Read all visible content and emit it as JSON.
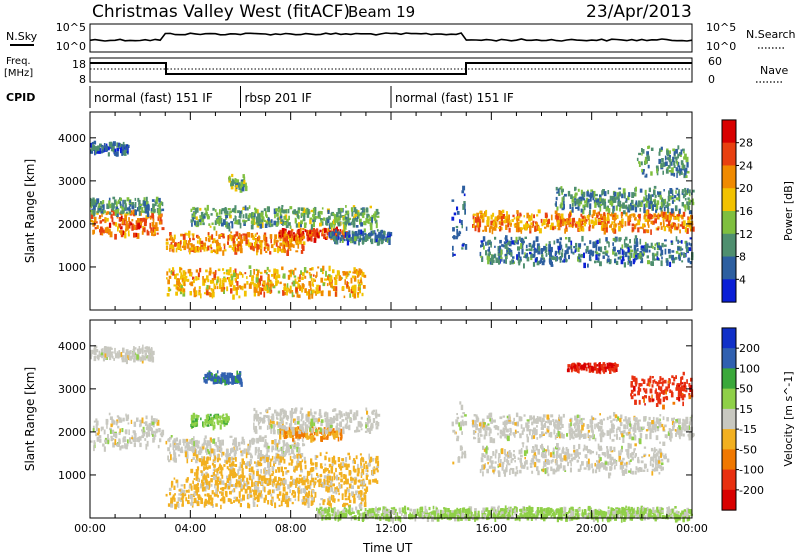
{
  "header": {
    "title": "Christmas Valley West (fitACF)",
    "beam": "Beam 19",
    "date": "23/Apr/2013"
  },
  "top_panels": {
    "nsky_label": "N.Sky",
    "nsky_ticks": [
      "10^5",
      "10^0"
    ],
    "nsearch_label": "N.Search",
    "nsearch_ticks": [
      "10^5",
      "10^0"
    ],
    "freq_label_1": "Freq.",
    "freq_label_2": "[MHz]",
    "freq_ticks": [
      "18",
      "8"
    ],
    "nave_label": "Nave",
    "nave_ticks": [
      "60",
      "0"
    ],
    "cpid_label": "CPID",
    "cpid_segments": [
      {
        "label": "normal (fast) 151 IF",
        "start_h": 0,
        "end_h": 6
      },
      {
        "label": "rbsp 201 IF",
        "start_h": 6,
        "end_h": 12
      },
      {
        "label": "normal (fast) 151 IF",
        "start_h": 12,
        "end_h": 24
      }
    ]
  },
  "chart_data": [
    {
      "type": "heatmap",
      "title": "",
      "ylabel": "Slant Range [km]",
      "xlabel": "",
      "xlim": [
        0,
        24
      ],
      "ylim": [
        0,
        4600
      ],
      "ytick_labels": [
        "1000",
        "2000",
        "3000",
        "4000"
      ],
      "yticks": [
        1000,
        2000,
        3000,
        4000
      ],
      "colorbar": {
        "label": "Power [dB]",
        "tick_labels": [
          "4",
          "8",
          "12",
          "16",
          "20",
          "24",
          "28"
        ],
        "colors": [
          "#0a1fd6",
          "#2d5fa0",
          "#4f8f6f",
          "#7fbf3f",
          "#f2c200",
          "#f08a00",
          "#e84010",
          "#d80000"
        ]
      },
      "echo_bands": [
        {
          "t0": 0,
          "t1": 2.9,
          "r_center": 2050,
          "r_width": 320,
          "level": 24
        },
        {
          "t0": 0,
          "t1": 2.9,
          "r_center": 2450,
          "r_width": 200,
          "level": 10
        },
        {
          "t0": 0,
          "t1": 1.5,
          "r_center": 3800,
          "r_width": 150,
          "level": 6
        },
        {
          "t0": 3.0,
          "t1": 8.5,
          "r_center": 1600,
          "r_width": 260,
          "level": 22
        },
        {
          "t0": 3.0,
          "t1": 11.0,
          "r_center": 700,
          "r_width": 380,
          "level": 20
        },
        {
          "t0": 7.5,
          "t1": 10.2,
          "r_center": 1800,
          "r_width": 140,
          "level": 26
        },
        {
          "t0": 4.0,
          "t1": 11.5,
          "r_center": 2200,
          "r_width": 260,
          "level": 12
        },
        {
          "t0": 5.5,
          "t1": 6.2,
          "r_center": 3000,
          "r_width": 200,
          "level": 12
        },
        {
          "t0": 9.5,
          "t1": 12.0,
          "r_center": 1750,
          "r_width": 160,
          "level": 8
        },
        {
          "t0": 14.4,
          "t1": 15.0,
          "r_center": 2100,
          "r_width": 900,
          "level": 6
        },
        {
          "t0": 15.2,
          "t1": 24.0,
          "r_center": 2100,
          "r_width": 260,
          "level": 22
        },
        {
          "t0": 15.5,
          "t1": 24.0,
          "r_center": 1400,
          "r_width": 350,
          "level": 8
        },
        {
          "t0": 18.5,
          "t1": 24.0,
          "r_center": 2600,
          "r_width": 300,
          "level": 10
        },
        {
          "t0": 21.8,
          "t1": 23.8,
          "r_center": 3500,
          "r_width": 400,
          "level": 10
        }
      ]
    },
    {
      "type": "heatmap",
      "title": "",
      "ylabel": "Slant Range [km]",
      "xlabel": "Time UT",
      "xlim": [
        0,
        24
      ],
      "ylim": [
        0,
        4600
      ],
      "xtick_labels": [
        "00:00",
        "04:00",
        "08:00",
        "12:00",
        "16:00",
        "20:00",
        "00:00"
      ],
      "xticks": [
        0,
        4,
        8,
        12,
        16,
        20,
        24
      ],
      "ytick_labels": [
        "1000",
        "2000",
        "3000",
        "4000"
      ],
      "yticks": [
        1000,
        2000,
        3000,
        4000
      ],
      "colorbar": {
        "label": "Velocity [m s^-1]",
        "tick_labels": [
          "200",
          "100",
          "50",
          "15",
          "-15",
          "-50",
          "-100",
          "-200"
        ],
        "colors": [
          "#1030c8",
          "#3060b0",
          "#3aa83a",
          "#8fd048",
          "#c8c8c0",
          "#f2b020",
          "#f07800",
          "#e83010",
          "#d80000"
        ]
      },
      "echo_bands": [
        {
          "t0": 0,
          "t1": 2.9,
          "r_center": 2050,
          "r_width": 420,
          "vel": 0
        },
        {
          "t0": 0,
          "t1": 2.5,
          "r_center": 3850,
          "r_width": 180,
          "vel": 0
        },
        {
          "t0": 3.0,
          "t1": 8.5,
          "r_center": 1650,
          "r_width": 300,
          "vel": 0
        },
        {
          "t0": 3.0,
          "t1": 11.0,
          "r_center": 650,
          "r_width": 380,
          "vel": -40
        },
        {
          "t0": 4.0,
          "t1": 11.5,
          "r_center": 1150,
          "r_width": 420,
          "vel": -40
        },
        {
          "t0": 4.5,
          "t1": 6.0,
          "r_center": 3300,
          "r_width": 150,
          "vel": 150
        },
        {
          "t0": 4.0,
          "t1": 5.5,
          "r_center": 2300,
          "r_width": 150,
          "vel": 60
        },
        {
          "t0": 7.5,
          "t1": 10.0,
          "r_center": 2000,
          "r_width": 150,
          "vel": -80
        },
        {
          "t0": 6.5,
          "t1": 11.5,
          "r_center": 2300,
          "r_width": 300,
          "vel": 0
        },
        {
          "t0": 14.4,
          "t1": 15.0,
          "r_center": 2100,
          "r_width": 900,
          "vel": 0
        },
        {
          "t0": 15.2,
          "t1": 24.0,
          "r_center": 2150,
          "r_width": 320,
          "vel": 0
        },
        {
          "t0": 15.5,
          "t1": 23.0,
          "r_center": 1400,
          "r_width": 380,
          "vel": 0
        },
        {
          "t0": 19.0,
          "t1": 21.0,
          "r_center": 3550,
          "r_width": 100,
          "vel": -180
        },
        {
          "t0": 21.5,
          "t1": 24.0,
          "r_center": 3000,
          "r_width": 400,
          "vel": -160
        },
        {
          "t0": 9.0,
          "t1": 24.0,
          "r_center": 150,
          "r_width": 150,
          "vel": 40
        }
      ]
    }
  ]
}
